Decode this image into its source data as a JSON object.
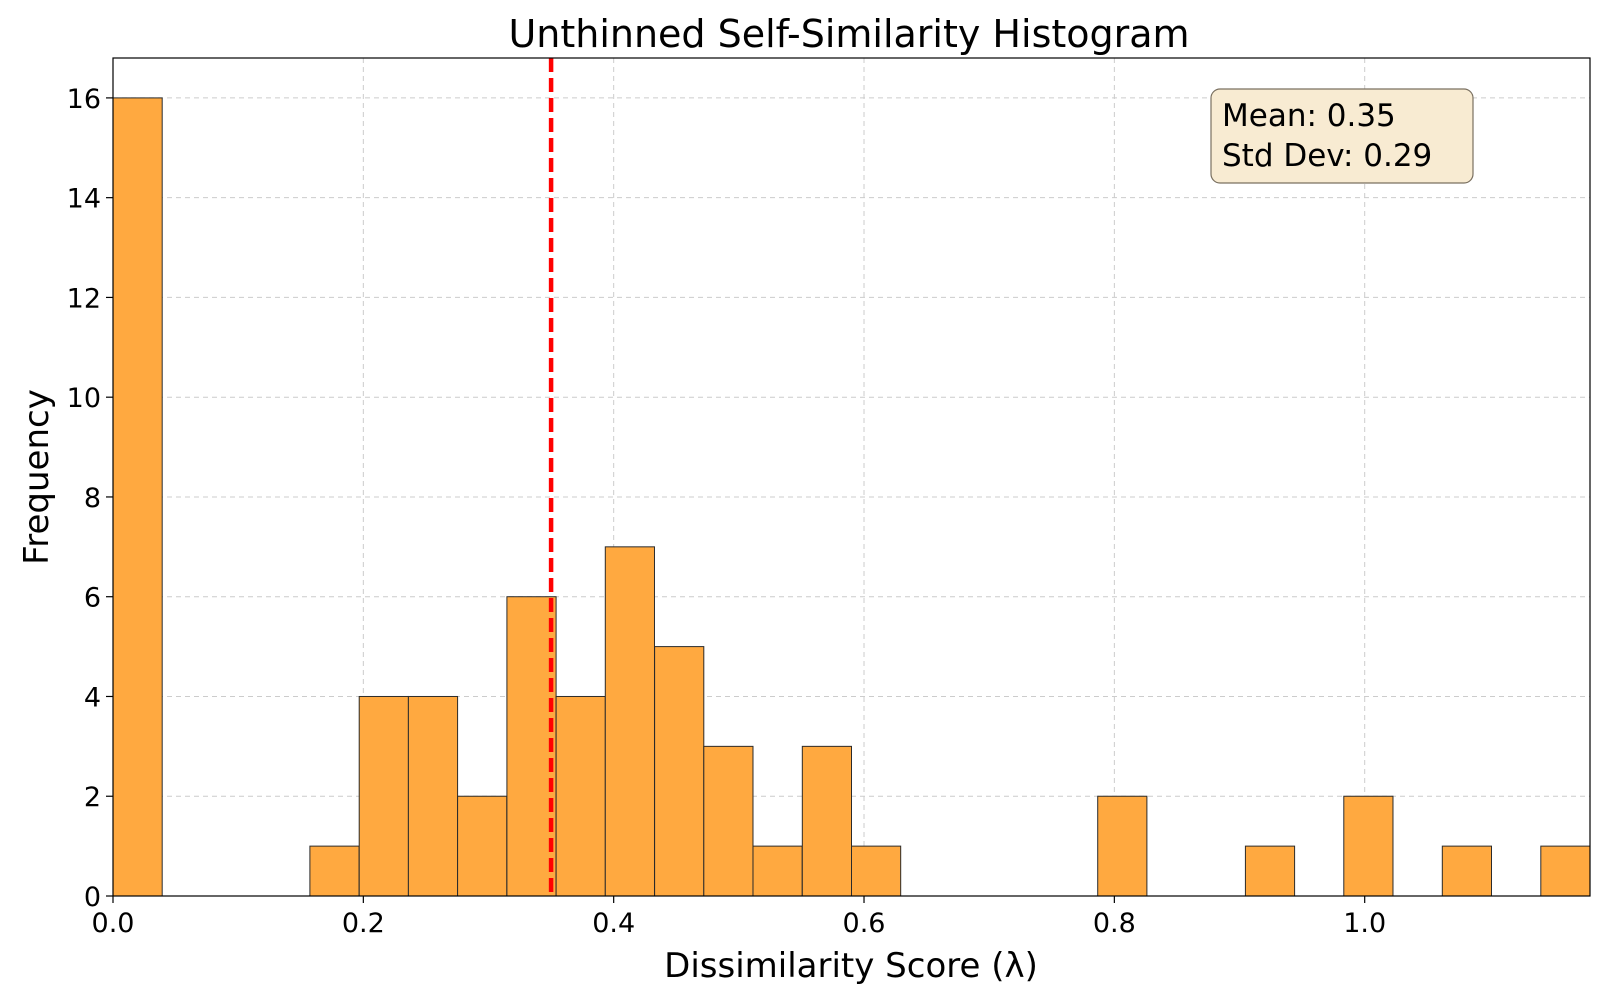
{
  "chart_data": {
    "type": "bar",
    "title": "Unthinned Self-Similarity Histogram",
    "xlabel": "Dissimilarity Score (λ)",
    "ylabel": "Frequency",
    "xlim": [
      0,
      1.18
    ],
    "ylim": [
      0,
      16.8
    ],
    "bin_width": 0.0393,
    "bins": [
      {
        "start": 0.0,
        "count": 16
      },
      {
        "start": 0.0393,
        "count": 0
      },
      {
        "start": 0.0787,
        "count": 0
      },
      {
        "start": 0.118,
        "count": 0
      },
      {
        "start": 0.1573,
        "count": 1
      },
      {
        "start": 0.1967,
        "count": 4
      },
      {
        "start": 0.236,
        "count": 4
      },
      {
        "start": 0.2753,
        "count": 2
      },
      {
        "start": 0.3147,
        "count": 6
      },
      {
        "start": 0.354,
        "count": 4
      },
      {
        "start": 0.3933,
        "count": 7
      },
      {
        "start": 0.4327,
        "count": 5
      },
      {
        "start": 0.472,
        "count": 3
      },
      {
        "start": 0.5113,
        "count": 1
      },
      {
        "start": 0.5507,
        "count": 3
      },
      {
        "start": 0.59,
        "count": 1
      },
      {
        "start": 0.6293,
        "count": 0
      },
      {
        "start": 0.6687,
        "count": 0
      },
      {
        "start": 0.708,
        "count": 0
      },
      {
        "start": 0.7473,
        "count": 0
      },
      {
        "start": 0.7867,
        "count": 2
      },
      {
        "start": 0.826,
        "count": 0
      },
      {
        "start": 0.8653,
        "count": 0
      },
      {
        "start": 0.9047,
        "count": 1
      },
      {
        "start": 0.944,
        "count": 0
      },
      {
        "start": 0.9833,
        "count": 2
      },
      {
        "start": 1.0227,
        "count": 0
      },
      {
        "start": 1.062,
        "count": 1
      },
      {
        "start": 1.1013,
        "count": 0
      },
      {
        "start": 1.1407,
        "count": 1
      }
    ],
    "x_ticks": [
      0.0,
      0.2,
      0.4,
      0.6,
      0.8,
      1.0
    ],
    "x_tick_labels": [
      "0.0",
      "0.2",
      "0.4",
      "0.6",
      "0.8",
      "1.0"
    ],
    "y_ticks": [
      0,
      2,
      4,
      6,
      8,
      10,
      12,
      14,
      16
    ],
    "y_tick_labels": [
      "0",
      "2",
      "4",
      "6",
      "8",
      "10",
      "12",
      "14",
      "16"
    ],
    "mean_line": {
      "x": 0.35,
      "color": "#ff0000",
      "style": "dashed"
    },
    "annotation": {
      "lines": [
        "Mean: 0.35",
        "Std Dev: 0.29"
      ],
      "placement": "top-right"
    },
    "grid": true,
    "bar_color": "#ffa940",
    "edge_color": "#2b2b2b"
  }
}
